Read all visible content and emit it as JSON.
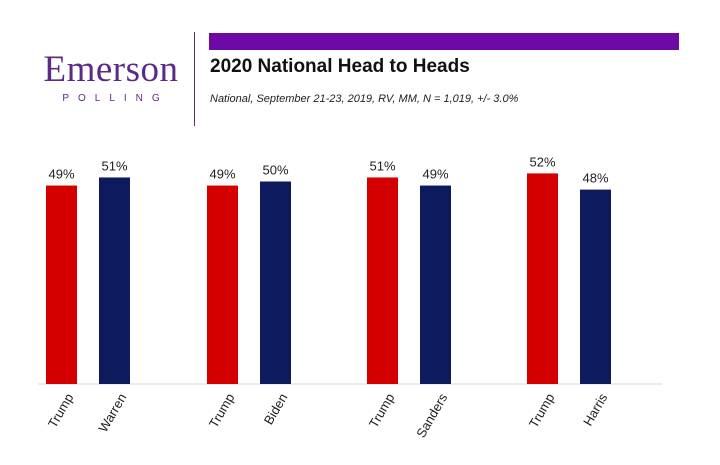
{
  "logo": {
    "name": "Emerson",
    "sub": "POLLING",
    "color": "#5b2a86"
  },
  "header": {
    "title": "2020 National Head to Heads",
    "subtitle": "National, September 21-23, 2019, RV, MM, N = 1,019, +/- 3.0%",
    "accent_color": "#6d0aa6"
  },
  "chart_data": {
    "type": "bar",
    "title": "2020 National Head to Heads",
    "categories": [
      "Trump",
      "Warren",
      "Trump",
      "Biden",
      "Trump",
      "Sanders",
      "Trump",
      "Harris"
    ],
    "values": [
      49,
      51,
      49,
      50,
      51,
      49,
      52,
      48
    ],
    "data_labels": [
      "49%",
      "51%",
      "49%",
      "50%",
      "51%",
      "49%",
      "52%",
      "48%"
    ],
    "colors": [
      "#d40000",
      "#0d1a5e",
      "#d40000",
      "#0d1a5e",
      "#d40000",
      "#0d1a5e",
      "#d40000",
      "#0d1a5e"
    ],
    "unit": "%",
    "ylim": [
      0,
      55
    ],
    "grid": false,
    "legend": "none"
  }
}
